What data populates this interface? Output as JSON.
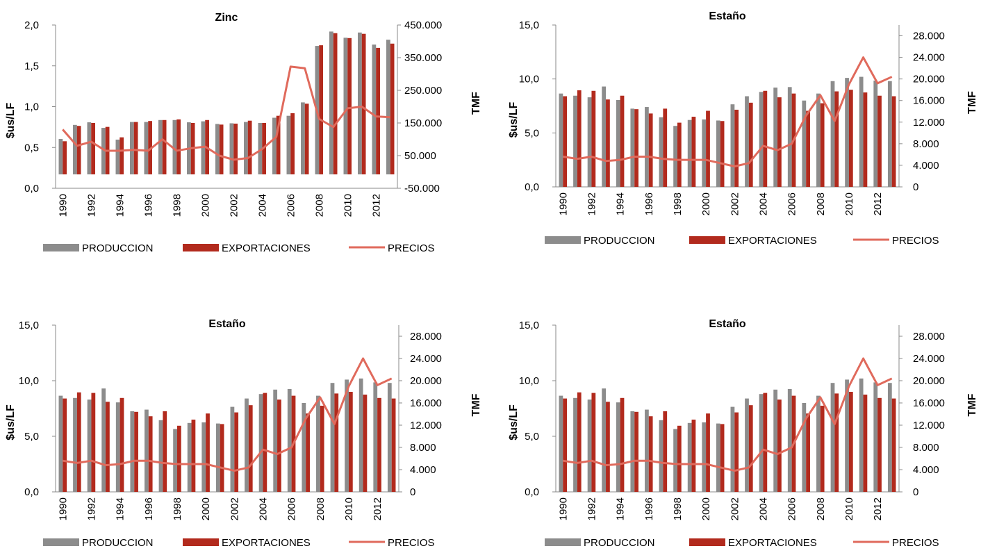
{
  "chart_data": [
    {
      "type": "bar",
      "title": "Zinc",
      "ylabel": "$us/LF",
      "y2label": "TMF",
      "categories": [
        "1990",
        "1991",
        "1992",
        "1993",
        "1994",
        "1995",
        "1996",
        "1997",
        "1998",
        "1999",
        "2000",
        "2001",
        "2002",
        "2003",
        "2004",
        "2005",
        "2006",
        "2007",
        "2008",
        "2009",
        "2010",
        "2011",
        "2012",
        "2013"
      ],
      "xtick_labels": [
        "1990",
        "1992",
        "1994",
        "1996",
        "1998",
        "2000",
        "2002",
        "2004",
        "2006",
        "2008",
        "2010",
        "2012"
      ],
      "ylim": [
        0,
        2
      ],
      "yticks": [
        "0,0",
        "0,5",
        "1,0",
        "1,5",
        "2,0"
      ],
      "y2lim": [
        -50000,
        450000
      ],
      "y2ticks": [
        "-50.000",
        "50.000",
        "150.000",
        "250.000",
        "350.000",
        "450.000"
      ],
      "series": [
        {
          "name": "PRODUCCION",
          "type": "bar",
          "axis": "secondary",
          "color": "#8c8c8c",
          "values": [
            101000,
            144000,
            152000,
            135000,
            99000,
            153000,
            153000,
            159000,
            159000,
            152000,
            155000,
            147000,
            149000,
            153000,
            150000,
            166000,
            172000,
            213000,
            386000,
            430000,
            411000,
            427000,
            390000,
            405000
          ]
        },
        {
          "name": "EXPORTACIONES",
          "type": "bar",
          "axis": "secondary",
          "color": "#b22a1d",
          "values": [
            94000,
            141000,
            150000,
            138000,
            106000,
            153000,
            156000,
            159000,
            161000,
            150000,
            159000,
            145000,
            148000,
            157000,
            150000,
            172000,
            180000,
            209000,
            388000,
            425000,
            410000,
            423000,
            380000,
            393000
          ]
        },
        {
          "name": "PRECIOS",
          "type": "line",
          "axis": "primary",
          "color": "#e06a5c",
          "values": [
            0.72,
            0.52,
            0.57,
            0.46,
            0.46,
            0.47,
            0.46,
            0.6,
            0.46,
            0.49,
            0.51,
            0.4,
            0.35,
            0.37,
            0.48,
            0.63,
            1.49,
            1.47,
            0.85,
            0.75,
            0.98,
            1.0,
            0.88,
            0.87
          ]
        }
      ],
      "legend": "bottom"
    },
    {
      "type": "bar",
      "title": "Estaño",
      "ylabel": "$us/LF",
      "y2label": "TMF",
      "categories": [
        "1990",
        "1991",
        "1992",
        "1993",
        "1994",
        "1995",
        "1996",
        "1997",
        "1998",
        "1999",
        "2000",
        "2001",
        "2002",
        "2003",
        "2004",
        "2005",
        "2006",
        "2007",
        "2008",
        "2009",
        "2010",
        "2011",
        "2012",
        "2013"
      ],
      "xtick_labels": [
        "1990",
        "1992",
        "1994",
        "1996",
        "1998",
        "2000",
        "2002",
        "2004",
        "2006",
        "2008",
        "2010",
        "2012"
      ],
      "ylim": [
        0,
        15
      ],
      "yticks": [
        "0,0",
        "5,0",
        "10,0",
        "15,0"
      ],
      "y2lim": [
        0,
        30000
      ],
      "y2ticks": [
        "0",
        "4.000",
        "8.000",
        "12.000",
        "16.000",
        "20.000",
        "24.000",
        "28.000"
      ],
      "series": [
        {
          "name": "PRODUCCION",
          "type": "bar",
          "axis": "secondary",
          "color": "#8c8c8c",
          "values": [
            17300,
            16900,
            16600,
            18600,
            16100,
            14500,
            14800,
            12900,
            11300,
            12400,
            12500,
            12300,
            15300,
            16800,
            17600,
            18400,
            18500,
            16000,
            17300,
            19600,
            20200,
            20400,
            19700,
            19600
          ]
        },
        {
          "name": "EXPORTACIONES",
          "type": "bar",
          "axis": "secondary",
          "color": "#b22a1d",
          "values": [
            16800,
            17900,
            17800,
            16200,
            16900,
            14400,
            13600,
            14500,
            11900,
            13000,
            14100,
            12200,
            14300,
            15600,
            17800,
            16600,
            17300,
            14100,
            15500,
            17700,
            18000,
            17500,
            16900,
            16800
          ]
        },
        {
          "name": "PRECIOS",
          "type": "line",
          "axis": "primary",
          "color": "#e06a5c",
          "values": [
            2.8,
            2.6,
            2.8,
            2.4,
            2.5,
            2.8,
            2.8,
            2.6,
            2.5,
            2.5,
            2.5,
            2.2,
            1.9,
            2.2,
            3.8,
            3.4,
            4.0,
            6.6,
            8.5,
            6.1,
            9.5,
            12.0,
            9.6,
            10.2
          ]
        }
      ],
      "legend": "bottom"
    },
    {
      "type": "bar",
      "title": "Estaño",
      "ylabel": "$us/LF",
      "y2label": "TMF",
      "categories": [
        "1990",
        "1991",
        "1992",
        "1993",
        "1994",
        "1995",
        "1996",
        "1997",
        "1998",
        "1999",
        "2000",
        "2001",
        "2002",
        "2003",
        "2004",
        "2005",
        "2006",
        "2007",
        "2008",
        "2009",
        "2010",
        "2011",
        "2012",
        "2013"
      ],
      "xtick_labels": [
        "1990",
        "1992",
        "1994",
        "1996",
        "1998",
        "2000",
        "2002",
        "2004",
        "2006",
        "2008",
        "2010",
        "2012"
      ],
      "ylim": [
        0,
        15
      ],
      "yticks": [
        "0,0",
        "5,0",
        "10,0",
        "15,0"
      ],
      "y2lim": [
        0,
        30000
      ],
      "y2ticks": [
        "0",
        "4.000",
        "8.000",
        "12.000",
        "16.000",
        "20.000",
        "24.000",
        "28.000"
      ],
      "series": [
        {
          "name": "PRODUCCION",
          "type": "bar",
          "axis": "secondary",
          "color": "#8c8c8c",
          "values": [
            17300,
            16900,
            16600,
            18600,
            16100,
            14500,
            14800,
            12900,
            11300,
            12400,
            12500,
            12300,
            15300,
            16800,
            17600,
            18400,
            18500,
            16000,
            17300,
            19600,
            20200,
            20400,
            19700,
            19600
          ]
        },
        {
          "name": "EXPORTACIONES",
          "type": "bar",
          "axis": "secondary",
          "color": "#b22a1d",
          "values": [
            16800,
            17900,
            17800,
            16200,
            16900,
            14400,
            13600,
            14500,
            11900,
            13000,
            14100,
            12200,
            14300,
            15600,
            17800,
            16600,
            17300,
            14100,
            15500,
            17700,
            18000,
            17500,
            16900,
            16800
          ]
        },
        {
          "name": "PRECIOS",
          "type": "line",
          "axis": "primary",
          "color": "#e06a5c",
          "values": [
            2.8,
            2.6,
            2.8,
            2.4,
            2.5,
            2.8,
            2.8,
            2.6,
            2.5,
            2.5,
            2.5,
            2.2,
            1.9,
            2.2,
            3.8,
            3.4,
            4.0,
            6.6,
            8.5,
            6.1,
            9.5,
            12.0,
            9.6,
            10.2
          ]
        }
      ],
      "legend": "bottom"
    },
    {
      "type": "bar",
      "title": "Estaño",
      "ylabel": "$us/LF",
      "y2label": "TMF",
      "categories": [
        "1990",
        "1991",
        "1992",
        "1993",
        "1994",
        "1995",
        "1996",
        "1997",
        "1998",
        "1999",
        "2000",
        "2001",
        "2002",
        "2003",
        "2004",
        "2005",
        "2006",
        "2007",
        "2008",
        "2009",
        "2010",
        "2011",
        "2012",
        "2013"
      ],
      "xtick_labels": [
        "1990",
        "1992",
        "1994",
        "1996",
        "1998",
        "2000",
        "2002",
        "2004",
        "2006",
        "2008",
        "2010",
        "2012"
      ],
      "ylim": [
        0,
        15
      ],
      "yticks": [
        "0,0",
        "5,0",
        "10,0",
        "15,0"
      ],
      "y2lim": [
        0,
        30000
      ],
      "y2ticks": [
        "0",
        "4.000",
        "8.000",
        "12.000",
        "16.000",
        "20.000",
        "24.000",
        "28.000"
      ],
      "series": [
        {
          "name": "PRODUCCION",
          "type": "bar",
          "axis": "secondary",
          "color": "#8c8c8c",
          "values": [
            17300,
            16900,
            16600,
            18600,
            16100,
            14500,
            14800,
            12900,
            11300,
            12400,
            12500,
            12300,
            15300,
            16800,
            17600,
            18400,
            18500,
            16000,
            17300,
            19600,
            20200,
            20400,
            19700,
            19600
          ]
        },
        {
          "name": "EXPORTACIONES",
          "type": "bar",
          "axis": "secondary",
          "color": "#b22a1d",
          "values": [
            16800,
            17900,
            17800,
            16200,
            16900,
            14400,
            13600,
            14500,
            11900,
            13000,
            14100,
            12200,
            14300,
            15600,
            17800,
            16600,
            17300,
            14100,
            15500,
            17700,
            18000,
            17500,
            16900,
            16800
          ]
        },
        {
          "name": "PRECIOS",
          "type": "line",
          "axis": "primary",
          "color": "#e06a5c",
          "values": [
            2.8,
            2.6,
            2.8,
            2.4,
            2.5,
            2.8,
            2.8,
            2.6,
            2.5,
            2.5,
            2.5,
            2.2,
            1.9,
            2.2,
            3.8,
            3.4,
            4.0,
            6.6,
            8.5,
            6.1,
            9.5,
            12.0,
            9.6,
            10.2
          ]
        }
      ],
      "legend": "bottom"
    }
  ]
}
